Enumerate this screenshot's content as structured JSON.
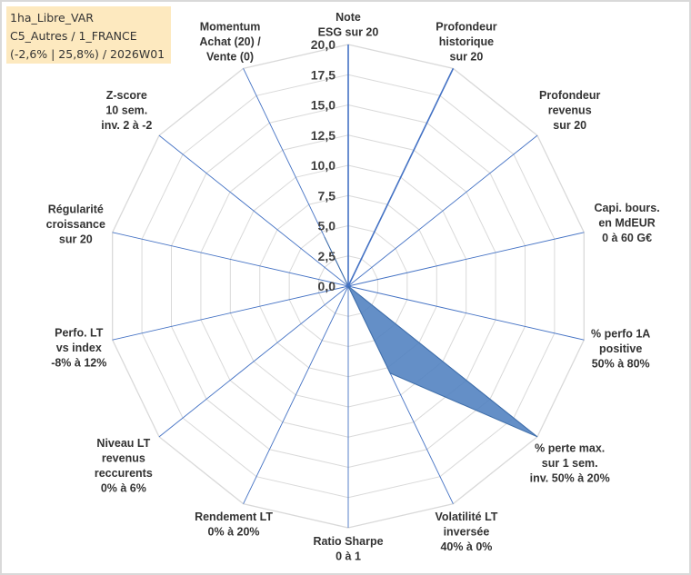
{
  "info": {
    "line1": "1ha_Libre_VAR",
    "line2": "C5_Autres / 1_FRANCE",
    "line3": "(-2,6% | 25,8%) / 2026W01"
  },
  "chart_data": {
    "type": "radar",
    "title": "",
    "rlim": [
      0,
      20
    ],
    "ticks": [
      "0,0",
      "2,5",
      "5,0",
      "7,5",
      "10,0",
      "12,5",
      "15,0",
      "17,5",
      "20,0"
    ],
    "axes": [
      {
        "label": [
          "Note",
          "ESG sur 20"
        ]
      },
      {
        "label": [
          "Profondeur",
          "historique",
          "sur 20"
        ]
      },
      {
        "label": [
          "Profondeur",
          "revenus",
          "sur 20"
        ]
      },
      {
        "label": [
          "Capi. bours.",
          "en MdEUR",
          "0 à 60 G€"
        ]
      },
      {
        "label": [
          "% perfo 1A",
          "positive",
          "50% à 80%"
        ]
      },
      {
        "label": [
          "% perte max.",
          "sur 1 sem.",
          "inv. 50% à 20%"
        ]
      },
      {
        "label": [
          "Volatilité LT",
          "inversée",
          "40% à 0%"
        ]
      },
      {
        "label": [
          "Ratio Sharpe",
          "0 à 1"
        ]
      },
      {
        "label": [
          "Rendement LT",
          "0% à 20%"
        ]
      },
      {
        "label": [
          "Niveau LT",
          "revenus",
          "reccurents",
          "0% à 6%"
        ]
      },
      {
        "label": [
          "Perfo. LT",
          "vs index",
          "-8% à 12%"
        ]
      },
      {
        "label": [
          "Régularité",
          "croissance",
          "sur 20"
        ]
      },
      {
        "label": [
          "Z-score",
          "10 sem.",
          "inv. 2 à -2"
        ]
      },
      {
        "label": [
          "Momentum",
          "Achat (20) /",
          "Vente (0)"
        ]
      }
    ],
    "series": [
      {
        "name": "1ha_Libre_VAR",
        "color": "#4f7fbf",
        "values": [
          0,
          0,
          0,
          0,
          0,
          20,
          8,
          0,
          0,
          0,
          0,
          0,
          0,
          4.5
        ]
      }
    ],
    "reference_lines": [
      {
        "axis_index": 1,
        "value": 20,
        "color": "#4472c4"
      },
      {
        "axis_index": 0,
        "value": 20,
        "color": "#4472c4"
      }
    ],
    "grid_color": "#d9d9d9",
    "spoke_color": "#4472c4"
  }
}
